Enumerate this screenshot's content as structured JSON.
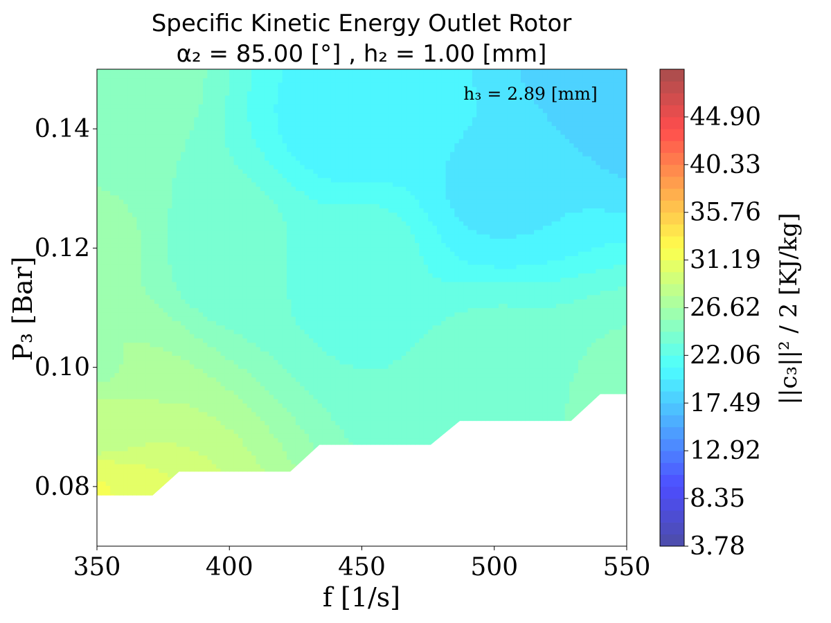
{
  "chart_data": {
    "type": "contourf",
    "title": [
      "Specific Kinetic Energy Outlet Rotor",
      "α₂ = 85.00 [°] , h₂ = 1.00 [mm]"
    ],
    "xlabel": "f [1/s]",
    "ylabel": "P₃ [Bar]",
    "annotation": "h₃ = 2.89 [mm]",
    "xlim": [
      350,
      550
    ],
    "ylim": [
      0.07,
      0.15
    ],
    "xticks": [
      "350",
      "400",
      "450",
      "500",
      "550"
    ],
    "yticks": [
      "0.08",
      "0.10",
      "0.12",
      "0.14"
    ],
    "colorbar": {
      "label": "||c₃||² / 2 [KJ/kg]",
      "range": [
        3.78,
        49.47
      ],
      "ticks": [
        "3.78",
        "8.35",
        "12.92",
        "17.49",
        "22.06",
        "26.62",
        "31.19",
        "35.76",
        "40.33",
        "44.90"
      ],
      "colormap": "jet",
      "alpha": 0.7
    },
    "field_samples": [
      {
        "f": 350,
        "p3": 0.079,
        "value": 31.2
      },
      {
        "f": 350,
        "p3": 0.09,
        "value": 28.5
      },
      {
        "f": 350,
        "p3": 0.1,
        "value": 26.6
      },
      {
        "f": 350,
        "p3": 0.12,
        "value": 25.6
      },
      {
        "f": 350,
        "p3": 0.148,
        "value": 25.2
      },
      {
        "f": 400,
        "p3": 0.12,
        "value": 23.6
      },
      {
        "f": 450,
        "p3": 0.12,
        "value": 22.3
      },
      {
        "f": 450,
        "p3": 0.14,
        "value": 20.2
      },
      {
        "f": 500,
        "p3": 0.1,
        "value": 23.5
      },
      {
        "f": 500,
        "p3": 0.13,
        "value": 19.6
      },
      {
        "f": 550,
        "p3": 0.095,
        "value": 24.6
      },
      {
        "f": 550,
        "p3": 0.148,
        "value": 17.6
      }
    ],
    "valid_region_lower_boundary": [
      {
        "f": 350,
        "p3": 0.0785
      },
      {
        "f": 371,
        "p3": 0.0785
      },
      {
        "f": 381,
        "p3": 0.0825
      },
      {
        "f": 423,
        "p3": 0.0825
      },
      {
        "f": 434,
        "p3": 0.087
      },
      {
        "f": 476,
        "p3": 0.087
      },
      {
        "f": 487,
        "p3": 0.091
      },
      {
        "f": 529,
        "p3": 0.091
      },
      {
        "f": 540,
        "p3": 0.0955
      },
      {
        "f": 550,
        "p3": 0.0955
      }
    ]
  }
}
